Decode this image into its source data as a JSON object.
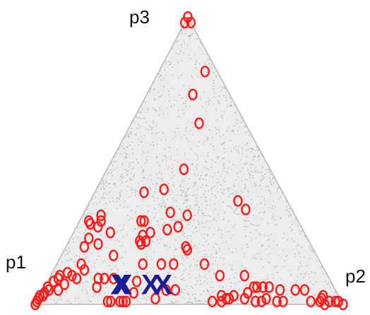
{
  "chart_data": {
    "type": "scatter",
    "coordinate_system": "ternary simplex",
    "vertex_labels": {
      "top": "p3",
      "left": "p1",
      "right": "p2"
    },
    "axis_order": [
      "p1",
      "p2",
      "p3"
    ],
    "title": "",
    "legend": "none",
    "grid": false,
    "colors": {
      "cloud": "#b9b9b9",
      "points": "#ff1a1a",
      "crosses": "#1c1c96"
    },
    "series": [
      {
        "marker": "circle",
        "points": [
          [
            0.0,
            0.0,
            1.0
          ],
          [
            0.0,
            0.02,
            0.98
          ],
          [
            0.02,
            0.0,
            0.98
          ],
          [
            0.04,
            0.15,
            0.81
          ],
          [
            0.12,
            0.15,
            0.73
          ],
          [
            0.15,
            0.22,
            0.63
          ],
          [
            0.28,
            0.25,
            0.47
          ],
          [
            0.16,
            0.48,
            0.36
          ],
          [
            0.15,
            0.52,
            0.33
          ],
          [
            0.38,
            0.22,
            0.4
          ],
          [
            0.45,
            0.16,
            0.39
          ],
          [
            0.4,
            0.28,
            0.32
          ],
          [
            0.51,
            0.2,
            0.29
          ],
          [
            0.5,
            0.21,
            0.29
          ],
          [
            0.44,
            0.3,
            0.26
          ],
          [
            0.53,
            0.23,
            0.24
          ],
          [
            0.41,
            0.39,
            0.2
          ],
          [
            0.41,
            0.4,
            0.19
          ],
          [
            0.68,
            0.03,
            0.29
          ],
          [
            0.68,
            0.04,
            0.28
          ],
          [
            0.63,
            0.06,
            0.31
          ],
          [
            0.64,
            0.07,
            0.29
          ],
          [
            0.55,
            0.23,
            0.22
          ],
          [
            0.55,
            0.24,
            0.21
          ],
          [
            0.53,
            0.25,
            0.22
          ],
          [
            0.5,
            0.25,
            0.25
          ],
          [
            0.4,
            0.33,
            0.27
          ],
          [
            0.35,
            0.34,
            0.31
          ],
          [
            0.38,
            0.48,
            0.14
          ],
          [
            0.35,
            0.55,
            0.1
          ],
          [
            0.71,
            0.06,
            0.23
          ],
          [
            0.66,
            0.07,
            0.27
          ],
          [
            0.63,
            0.12,
            0.25
          ],
          [
            0.66,
            0.17,
            0.17
          ],
          [
            0.58,
            0.28,
            0.14
          ],
          [
            0.48,
            0.38,
            0.14
          ],
          [
            0.27,
            0.63,
            0.1
          ],
          [
            0.74,
            0.06,
            0.2
          ],
          [
            0.69,
            0.1,
            0.21
          ],
          [
            0.78,
            0.08,
            0.14
          ],
          [
            0.52,
            0.34,
            0.14
          ],
          [
            0.23,
            0.71,
            0.06
          ],
          [
            0.21,
            0.73,
            0.06
          ],
          [
            0.18,
            0.77,
            0.05
          ],
          [
            0.26,
            0.68,
            0.06
          ],
          [
            0.25,
            0.69,
            0.06
          ],
          [
            0.13,
            0.82,
            0.05
          ],
          [
            0.1,
            0.85,
            0.05
          ],
          [
            0.88,
            0.03,
            0.09
          ],
          [
            0.84,
            0.05,
            0.11
          ],
          [
            0.83,
            0.07,
            0.1
          ],
          [
            0.82,
            0.09,
            0.09
          ],
          [
            0.78,
            0.1,
            0.12
          ],
          [
            0.75,
            0.16,
            0.09
          ],
          [
            0.63,
            0.29,
            0.08
          ],
          [
            0.55,
            0.4,
            0.05
          ],
          [
            0.52,
            0.43,
            0.05
          ],
          [
            0.1,
            0.89,
            0.01
          ],
          [
            0.9,
            0.02,
            0.08
          ],
          [
            0.87,
            0.03,
            0.1
          ],
          [
            0.93,
            0.01,
            0.06
          ],
          [
            0.96,
            0.01,
            0.03
          ],
          [
            0.9,
            0.05,
            0.05
          ],
          [
            0.87,
            0.06,
            0.07
          ],
          [
            0.73,
            0.18,
            0.09
          ],
          [
            0.77,
            0.17,
            0.06
          ],
          [
            0.7,
            0.21,
            0.09
          ],
          [
            0.66,
            0.3,
            0.04
          ],
          [
            0.38,
            0.59,
            0.03
          ],
          [
            0.34,
            0.63,
            0.03
          ],
          [
            0.36,
            0.62,
            0.02
          ],
          [
            0.37,
            0.61,
            0.02
          ],
          [
            0.29,
            0.67,
            0.04
          ],
          [
            0.24,
            0.74,
            0.02
          ],
          [
            0.01,
            0.98,
            0.01
          ],
          [
            0.02,
            0.97,
            0.01
          ],
          [
            0.0,
            1.0,
            0.0
          ],
          [
            0.05,
            0.92,
            0.03
          ],
          [
            0.06,
            0.92,
            0.02
          ],
          [
            0.04,
            0.95,
            0.01
          ],
          [
            0.97,
            0.0,
            0.03
          ],
          [
            0.96,
            0.01,
            0.03
          ],
          [
            0.98,
            0.0,
            0.02
          ],
          [
            0.99,
            0.0,
            0.01
          ],
          [
            0.95,
            0.01,
            0.04
          ],
          [
            1.0,
            0.0,
            0.0
          ],
          [
            0.93,
            0.02,
            0.05
          ],
          [
            0.76,
            0.23,
            0.01
          ],
          [
            0.75,
            0.24,
            0.01
          ],
          [
            0.72,
            0.27,
            0.01
          ],
          [
            0.71,
            0.28,
            0.01
          ],
          [
            0.7,
            0.29,
            0.01
          ],
          [
            0.6,
            0.38,
            0.02
          ],
          [
            0.42,
            0.57,
            0.01
          ],
          [
            0.39,
            0.6,
            0.01
          ],
          [
            0.31,
            0.67,
            0.02
          ],
          [
            0.28,
            0.71,
            0.01
          ],
          [
            0.26,
            0.73,
            0.01
          ],
          [
            0.21,
            0.78,
            0.01
          ],
          [
            0.19,
            0.8,
            0.01
          ],
          [
            0.07,
            0.92,
            0.01
          ],
          [
            0.06,
            0.94,
            0.0
          ]
        ]
      },
      {
        "marker": "X",
        "label": "X",
        "points": [
          [
            0.69,
            0.24,
            0.07
          ],
          [
            0.68,
            0.25,
            0.07
          ],
          [
            0.59,
            0.34,
            0.07
          ],
          [
            0.55,
            0.38,
            0.07
          ]
        ]
      }
    ]
  }
}
